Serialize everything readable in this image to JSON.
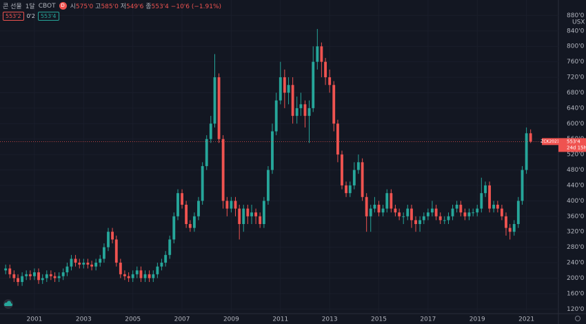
{
  "header": {
    "symbol": "콘 선물",
    "interval": "1달",
    "exchange": "CBOT",
    "badge": "D",
    "open_key": "시",
    "open_label": "575'0",
    "high_key": "고",
    "high_label": "585'0",
    "low_key": "저",
    "low_label": "549'6",
    "close_key": "종",
    "close_label": "553'4",
    "change_label": "−10'6 (−1.91%)",
    "bid_label": "553'2",
    "spread_label": "0'2",
    "ask_label": "553'4"
  },
  "chart_data": {
    "type": "candlestick",
    "currency": "USX",
    "up_color": "#26a69a",
    "down_color": "#ef5350",
    "grid": true,
    "last_price_label": "553'4",
    "contract_label": "ZCK2021",
    "countdown_label": "24d 15h",
    "xlim": [
      1999.6,
      2022.3
    ],
    "xticks": [
      2001,
      2003,
      2005,
      2007,
      2009,
      2011,
      2013,
      2015,
      2017,
      2019,
      2021
    ],
    "ylim": [
      108,
      920
    ],
    "yticks": [
      {
        "value": 120,
        "label": "120'0"
      },
      {
        "value": 160,
        "label": "160'0"
      },
      {
        "value": 200,
        "label": "200'0"
      },
      {
        "value": 240,
        "label": "240'0"
      },
      {
        "value": 280,
        "label": "280'0"
      },
      {
        "value": 320,
        "label": "320'0"
      },
      {
        "value": 360,
        "label": "360'0"
      },
      {
        "value": 400,
        "label": "400'0"
      },
      {
        "value": 440,
        "label": "440'0"
      },
      {
        "value": 480,
        "label": "480'0"
      },
      {
        "value": 520,
        "label": "520'0"
      },
      {
        "value": 560,
        "label": "560'0"
      },
      {
        "value": 600,
        "label": "600'0"
      },
      {
        "value": 640,
        "label": "640'0"
      },
      {
        "value": 680,
        "label": "680'0"
      },
      {
        "value": 720,
        "label": "720'0"
      },
      {
        "value": 760,
        "label": "760'0"
      },
      {
        "value": 800,
        "label": "800'0"
      },
      {
        "value": 840,
        "label": "840'0"
      },
      {
        "value": 880,
        "label": "880'0"
      }
    ],
    "x": [
      1999.83,
      2000.0,
      2000.17,
      2000.33,
      2000.5,
      2000.67,
      2000.83,
      2001.0,
      2001.17,
      2001.33,
      2001.5,
      2001.67,
      2001.83,
      2002.0,
      2002.17,
      2002.33,
      2002.5,
      2002.67,
      2002.83,
      2003.0,
      2003.17,
      2003.33,
      2003.5,
      2003.67,
      2003.83,
      2004.0,
      2004.17,
      2004.33,
      2004.5,
      2004.67,
      2004.83,
      2005.0,
      2005.17,
      2005.33,
      2005.5,
      2005.67,
      2005.83,
      2006.0,
      2006.17,
      2006.33,
      2006.5,
      2006.67,
      2006.83,
      2007.0,
      2007.17,
      2007.33,
      2007.5,
      2007.67,
      2007.83,
      2008.0,
      2008.17,
      2008.33,
      2008.5,
      2008.67,
      2008.83,
      2009.0,
      2009.17,
      2009.33,
      2009.5,
      2009.67,
      2009.83,
      2010.0,
      2010.17,
      2010.33,
      2010.5,
      2010.67,
      2010.83,
      2011.0,
      2011.17,
      2011.33,
      2011.5,
      2011.67,
      2011.83,
      2012.0,
      2012.17,
      2012.33,
      2012.5,
      2012.67,
      2012.83,
      2013.0,
      2013.17,
      2013.33,
      2013.5,
      2013.67,
      2013.83,
      2014.0,
      2014.17,
      2014.33,
      2014.5,
      2014.67,
      2014.83,
      2015.0,
      2015.17,
      2015.33,
      2015.5,
      2015.67,
      2015.83,
      2016.0,
      2016.17,
      2016.33,
      2016.5,
      2016.67,
      2016.83,
      2017.0,
      2017.17,
      2017.33,
      2017.5,
      2017.67,
      2017.83,
      2018.0,
      2018.17,
      2018.33,
      2018.5,
      2018.67,
      2018.83,
      2019.0,
      2019.17,
      2019.33,
      2019.5,
      2019.67,
      2019.83,
      2020.0,
      2020.17,
      2020.33,
      2020.5,
      2020.67,
      2020.83,
      2021.0,
      2021.17
    ],
    "open": [
      220,
      225,
      210,
      200,
      190,
      205,
      210,
      205,
      215,
      195,
      200,
      210,
      205,
      200,
      205,
      215,
      230,
      250,
      240,
      235,
      240,
      235,
      230,
      240,
      250,
      280,
      320,
      300,
      240,
      210,
      205,
      200,
      210,
      220,
      200,
      210,
      200,
      210,
      230,
      240,
      260,
      300,
      360,
      420,
      390,
      340,
      330,
      360,
      400,
      490,
      560,
      600,
      720,
      560,
      400,
      380,
      400,
      380,
      340,
      380,
      360,
      370,
      360,
      340,
      400,
      480,
      580,
      660,
      720,
      680,
      700,
      620,
      640,
      650,
      620,
      640,
      760,
      800,
      760,
      720,
      700,
      600,
      520,
      440,
      420,
      440,
      480,
      500,
      410,
      360,
      380,
      390,
      370,
      380,
      420,
      380,
      370,
      360,
      360,
      380,
      350,
      340,
      350,
      360,
      370,
      380,
      360,
      350,
      350,
      360,
      380,
      390,
      370,
      360,
      370,
      370,
      380,
      420,
      440,
      380,
      390,
      380,
      360,
      330,
      320,
      340,
      400,
      480,
      575
    ],
    "high": [
      235,
      235,
      220,
      210,
      215,
      220,
      220,
      225,
      225,
      210,
      220,
      220,
      215,
      215,
      225,
      240,
      260,
      260,
      250,
      250,
      250,
      245,
      250,
      260,
      290,
      330,
      330,
      310,
      250,
      220,
      215,
      220,
      230,
      230,
      220,
      220,
      220,
      240,
      250,
      270,
      310,
      370,
      430,
      430,
      400,
      350,
      370,
      410,
      500,
      570,
      620,
      780,
      730,
      570,
      410,
      410,
      410,
      390,
      390,
      390,
      390,
      380,
      370,
      410,
      490,
      600,
      680,
      760,
      740,
      720,
      720,
      670,
      680,
      660,
      660,
      800,
      845,
      810,
      770,
      740,
      710,
      610,
      530,
      450,
      450,
      500,
      520,
      510,
      420,
      390,
      410,
      400,
      390,
      430,
      430,
      390,
      380,
      370,
      390,
      390,
      360,
      360,
      370,
      380,
      400,
      390,
      370,
      360,
      370,
      390,
      400,
      400,
      380,
      380,
      380,
      390,
      460,
      450,
      450,
      400,
      400,
      390,
      370,
      340,
      350,
      410,
      490,
      590,
      585
    ],
    "low": [
      210,
      200,
      190,
      180,
      180,
      195,
      195,
      195,
      185,
      185,
      190,
      195,
      190,
      190,
      195,
      205,
      220,
      230,
      225,
      225,
      225,
      220,
      220,
      230,
      240,
      270,
      290,
      230,
      200,
      195,
      190,
      190,
      200,
      190,
      190,
      190,
      190,
      200,
      220,
      230,
      250,
      290,
      350,
      380,
      330,
      320,
      320,
      350,
      390,
      480,
      550,
      590,
      550,
      380,
      360,
      370,
      360,
      300,
      320,
      340,
      340,
      340,
      330,
      330,
      390,
      470,
      570,
      650,
      640,
      650,
      600,
      600,
      620,
      590,
      550,
      630,
      740,
      720,
      700,
      680,
      580,
      500,
      430,
      410,
      410,
      430,
      470,
      400,
      320,
      320,
      370,
      360,
      360,
      370,
      370,
      360,
      350,
      340,
      350,
      330,
      320,
      320,
      340,
      350,
      360,
      350,
      340,
      340,
      340,
      350,
      370,
      360,
      350,
      350,
      360,
      360,
      370,
      410,
      370,
      370,
      370,
      350,
      310,
      300,
      310,
      330,
      390,
      470,
      549.75
    ],
    "close": [
      225,
      210,
      200,
      190,
      205,
      210,
      205,
      215,
      195,
      200,
      210,
      205,
      200,
      205,
      215,
      230,
      250,
      240,
      235,
      240,
      235,
      230,
      240,
      250,
      280,
      320,
      300,
      240,
      210,
      205,
      200,
      210,
      220,
      200,
      210,
      200,
      210,
      230,
      240,
      260,
      300,
      360,
      420,
      390,
      340,
      330,
      360,
      400,
      490,
      560,
      600,
      720,
      560,
      400,
      380,
      400,
      380,
      340,
      380,
      360,
      370,
      360,
      340,
      400,
      480,
      580,
      660,
      720,
      680,
      700,
      620,
      640,
      650,
      620,
      640,
      760,
      800,
      760,
      720,
      700,
      600,
      520,
      440,
      420,
      440,
      480,
      500,
      410,
      360,
      380,
      390,
      370,
      380,
      420,
      380,
      370,
      360,
      360,
      380,
      350,
      340,
      350,
      360,
      370,
      380,
      360,
      350,
      350,
      360,
      380,
      390,
      370,
      360,
      370,
      370,
      380,
      420,
      440,
      380,
      390,
      380,
      360,
      330,
      320,
      340,
      400,
      480,
      575,
      553.5
    ]
  }
}
